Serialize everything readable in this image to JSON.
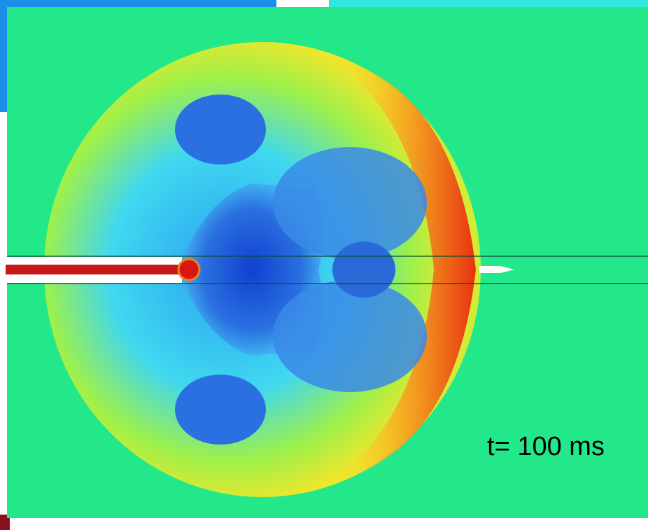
{
  "label": "t= 100 ms"
}
